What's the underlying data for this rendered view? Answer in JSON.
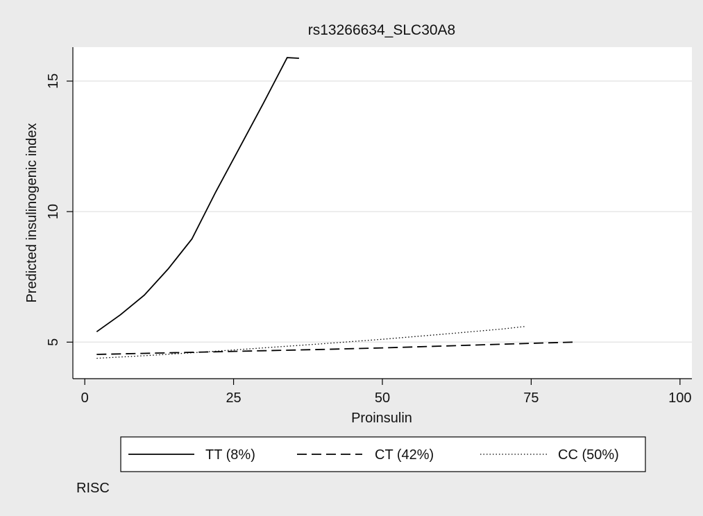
{
  "chart_data": {
    "type": "line",
    "title": "rs13266634_SLC30A8",
    "xlabel": "Proinsulin",
    "ylabel": "Predicted insulinogenic index",
    "xlim": [
      -2,
      102
    ],
    "ylim": [
      3.6,
      16.3
    ],
    "xticks": [
      0,
      25,
      50,
      75,
      100
    ],
    "yticks": [
      5,
      10,
      15
    ],
    "grid": "horizontal",
    "legend_position": "bottom",
    "note": "RISC",
    "series": [
      {
        "name": "TT (8%)",
        "style": "solid",
        "x": [
          2,
          6,
          10,
          14,
          18,
          22,
          26,
          30,
          34,
          36
        ],
        "y": [
          5.4,
          6.05,
          6.8,
          7.8,
          8.95,
          10.75,
          12.45,
          14.15,
          15.9,
          16.8
        ]
      },
      {
        "name": "CT (42%)",
        "style": "dashed",
        "x": [
          2,
          10,
          20,
          30,
          40,
          50,
          60,
          70,
          82
        ],
        "y": [
          4.53,
          4.57,
          4.62,
          4.67,
          4.72,
          4.78,
          4.85,
          4.92,
          5.0
        ]
      },
      {
        "name": "CC (50%)",
        "style": "dotted",
        "x": [
          2,
          10,
          20,
          30,
          40,
          50,
          60,
          70,
          74
        ],
        "y": [
          4.38,
          4.48,
          4.62,
          4.78,
          4.94,
          5.11,
          5.3,
          5.5,
          5.6
        ]
      }
    ]
  }
}
